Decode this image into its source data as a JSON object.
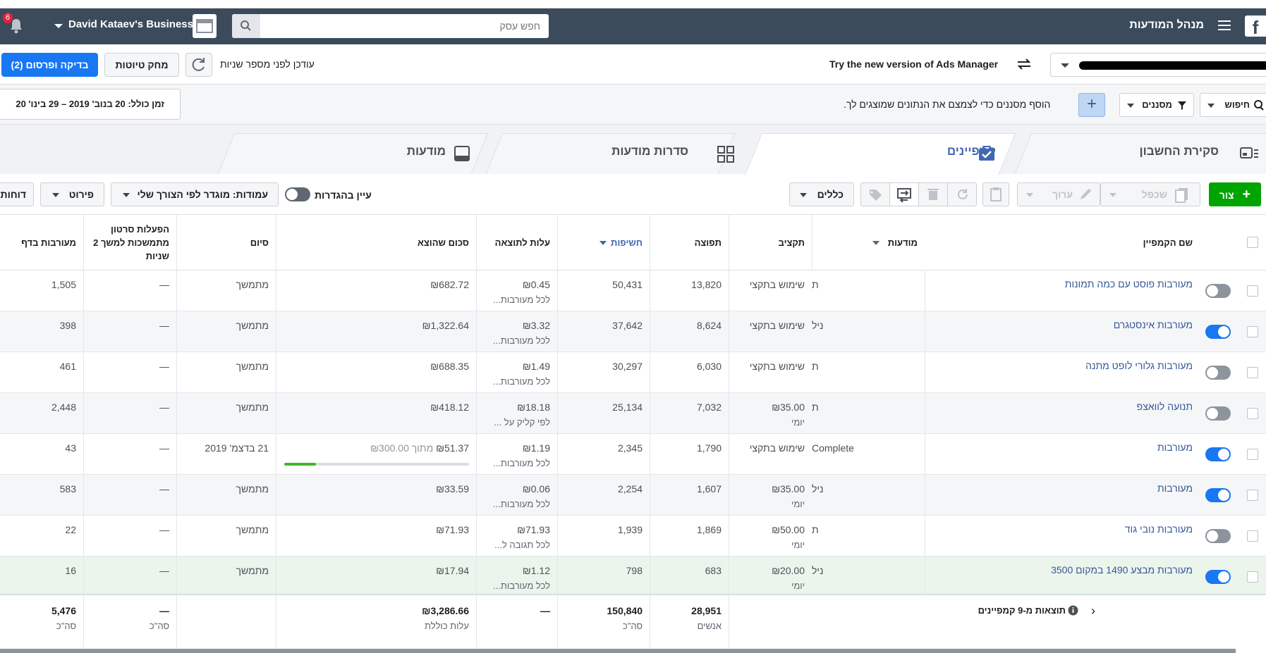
{
  "header": {
    "app_title": "מנהל המודעות",
    "search_placeholder": "חפש עסק",
    "business_name": "David Kataev's Business",
    "notifications_count": "6"
  },
  "actions": {
    "publish_label": "בדיקה ופרסום (2)",
    "discard_label": "מחק טיוטות",
    "updated_text": "עודכן לפני מספר שניות",
    "try_new_label": "Try the new version of Ads Manager"
  },
  "filters": {
    "date_range": "זמן כולל: 20 בנוב' 2019 – 29 בינו' 20",
    "hint": "הוסף מסננים כדי לצמצם את הנתונים שמוצגים לך.",
    "filters_label": "מסננים",
    "search_label": "חיפוש"
  },
  "tabs": [
    {
      "label": "סקירת החשבון"
    },
    {
      "label": "קמפיינים"
    },
    {
      "label": "סדרות מודעות"
    },
    {
      "label": "מודעות"
    }
  ],
  "toolbar": {
    "create_label": "צור",
    "duplicate_label": "שכפל",
    "edit_label": "ערוך",
    "rules_label": "כללים",
    "view_setup_label": "עיין בהגדרות",
    "columns_label": "עמודות: מוגדר לפי הצורך שלי",
    "breakdown_label": "פירוט",
    "reports_label": "דוחות"
  },
  "table": {
    "headers": {
      "name": "שם הקמפיין",
      "delivery": "מודעות",
      "budget": "תקציב",
      "reach": "תפוצה",
      "impressions": "חשיפות",
      "cost": "עלות לתוצאה",
      "spent": "סכום שהוצא",
      "ends": "סיום",
      "video": "הפעלות סרטון מתמשכות למשך 2 שניות",
      "engagement": "מעורבות בדף"
    },
    "rows": [
      {
        "name": "מעורבות פוסט עם כמה תמונות",
        "delivery": "ת",
        "budget": "שימוש בתקצי",
        "budget_sub": "",
        "reach": "13,820",
        "impressions": "50,431",
        "cost": "₪0.45",
        "cost_sub": "לכל מעורבות...",
        "spent": "₪682.72",
        "spent_sub": "",
        "ends": "מתמשך",
        "video": "—",
        "engagement": "1,505",
        "on": false
      },
      {
        "name": "מעורבות אינסטגרם",
        "delivery": "ניל",
        "budget": "שימוש בתקצי",
        "budget_sub": "",
        "reach": "8,624",
        "impressions": "37,642",
        "cost": "₪3.32",
        "cost_sub": "לכל מעורבות...",
        "spent": "₪1,322.64",
        "spent_sub": "",
        "ends": "מתמשך",
        "video": "—",
        "engagement": "398",
        "on": true
      },
      {
        "name": "מעורבות גלורי לופט מתנה",
        "delivery": "ת",
        "budget": "שימוש בתקצי",
        "budget_sub": "",
        "reach": "6,030",
        "impressions": "30,297",
        "cost": "₪1.49",
        "cost_sub": "לכל מעורבות...",
        "spent": "₪688.35",
        "spent_sub": "",
        "ends": "מתמשך",
        "video": "—",
        "engagement": "461",
        "on": false
      },
      {
        "name": "תנועה לוואצפ",
        "delivery": "ת",
        "budget": "₪35.00",
        "budget_sub": "יומי",
        "reach": "7,032",
        "impressions": "25,134",
        "cost": "₪18.18",
        "cost_sub": "לפי קליק על ...",
        "spent": "₪418.12",
        "spent_sub": "",
        "ends": "מתמשך",
        "video": "—",
        "engagement": "2,448",
        "on": false
      },
      {
        "name": "מעורבות",
        "delivery": "Complete",
        "budget": "שימוש בתקצי",
        "budget_sub": "",
        "reach": "1,790",
        "impressions": "2,345",
        "cost": "₪1.19",
        "cost_sub": "לכל מעורבות...",
        "spent": "₪51.37",
        "spent_sub": "מתוך ₪300.00",
        "progress": 0.17,
        "ends": "21 בדצמ' 2019",
        "video": "—",
        "engagement": "43",
        "on": true
      },
      {
        "name": "מעורבות",
        "delivery": "ניל",
        "budget": "₪35.00",
        "budget_sub": "יומי",
        "reach": "1,607",
        "impressions": "2,254",
        "cost": "₪0.06",
        "cost_sub": "לכל מעורבות...",
        "spent": "₪33.59",
        "spent_sub": "",
        "ends": "מתמשך",
        "video": "—",
        "engagement": "583",
        "on": true
      },
      {
        "name": "מעורבות נובי גוד",
        "delivery": "ת",
        "budget": "₪50.00",
        "budget_sub": "יומי",
        "reach": "1,869",
        "impressions": "1,939",
        "cost": "₪71.93",
        "cost_sub": "לכל תגובה ל...",
        "spent": "₪71.93",
        "spent_sub": "",
        "ends": "מתמשך",
        "video": "—",
        "engagement": "22",
        "on": false
      },
      {
        "name": "מעורבות מבצע 1490 במקום 3500",
        "delivery": "ניל",
        "budget": "₪20.00",
        "budget_sub": "יומי",
        "reach": "683",
        "impressions": "798",
        "cost": "₪1.12",
        "cost_sub": "לכל מעורבות...",
        "spent": "₪17.94",
        "spent_sub": "",
        "ends": "מתמשך",
        "video": "—",
        "engagement": "16",
        "on": true
      }
    ],
    "totals": {
      "label": "תוצאות מ-9 קמפיינים",
      "reach": "28,951",
      "reach_sub": "אנשים",
      "impressions": "150,840",
      "impressions_sub": "סה\"כ",
      "cost": "—",
      "spent": "₪3,286.66",
      "spent_sub": "עלות כוללת",
      "video": "—",
      "video_sub": "סה\"כ",
      "engagement": "5,476",
      "engagement_sub": "סה\"כ"
    }
  },
  "colors": {
    "accent": "#1877f2",
    "header": "#3b4b5c",
    "create": "#00a400",
    "link": "#365899"
  }
}
